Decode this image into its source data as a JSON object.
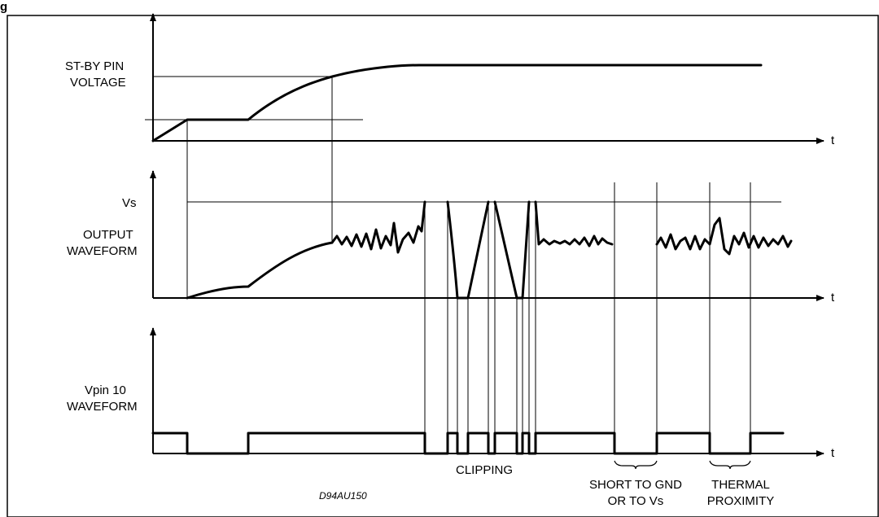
{
  "figure_title_fragment": "g",
  "labels": {
    "standby_line1": "ST-BY PIN",
    "standby_line2": "VOLTAGE",
    "vs": "Vs",
    "output_line1": "OUTPUT",
    "output_line2": "WAVEFORM",
    "vpin_line1": "Vpin 10",
    "vpin_line2": "WAVEFORM",
    "clipping": "CLIPPING",
    "short_line1": "SHORT TO GND",
    "short_line2": "OR TO Vs",
    "thermal_line1": "THERMAL",
    "thermal_line2": "PROXIMITY",
    "drawing_code": "D94AU150",
    "t_axis_1": "t",
    "t_axis_2": "t",
    "t_axis_3": "t"
  },
  "colors": {
    "stroke": "#000000",
    "background": "#ffffff"
  }
}
